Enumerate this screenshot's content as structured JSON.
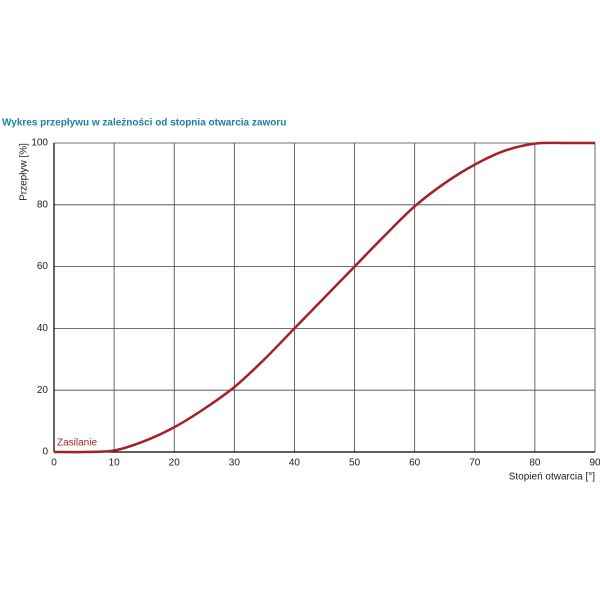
{
  "chart_data": {
    "type": "line",
    "title": "Wykres przepływu w zależności od stopnia otwarcia zaworu",
    "x_label": "Stopień otwarcia [°]",
    "y_label": "Przepływ [%]",
    "annotation": "Zasilanie",
    "x": [
      0,
      5,
      10,
      15,
      20,
      25,
      30,
      35,
      40,
      45,
      50,
      55,
      60,
      65,
      70,
      75,
      80,
      85,
      90
    ],
    "series": [
      {
        "color": "#a3212a",
        "values": [
          0,
          0,
          0.5,
          3.5,
          8,
          14,
          21,
          30,
          40,
          50,
          60,
          70,
          79.5,
          87,
          93,
          97.5,
          99.8,
          100,
          100
        ]
      }
    ],
    "xlim": [
      0,
      90
    ],
    "xticks": [
      0,
      10,
      20,
      30,
      40,
      50,
      60,
      70,
      80,
      90
    ],
    "ylim": [
      0,
      100
    ],
    "yticks": [
      0,
      20,
      40,
      60,
      80,
      100
    ],
    "grid": true
  }
}
